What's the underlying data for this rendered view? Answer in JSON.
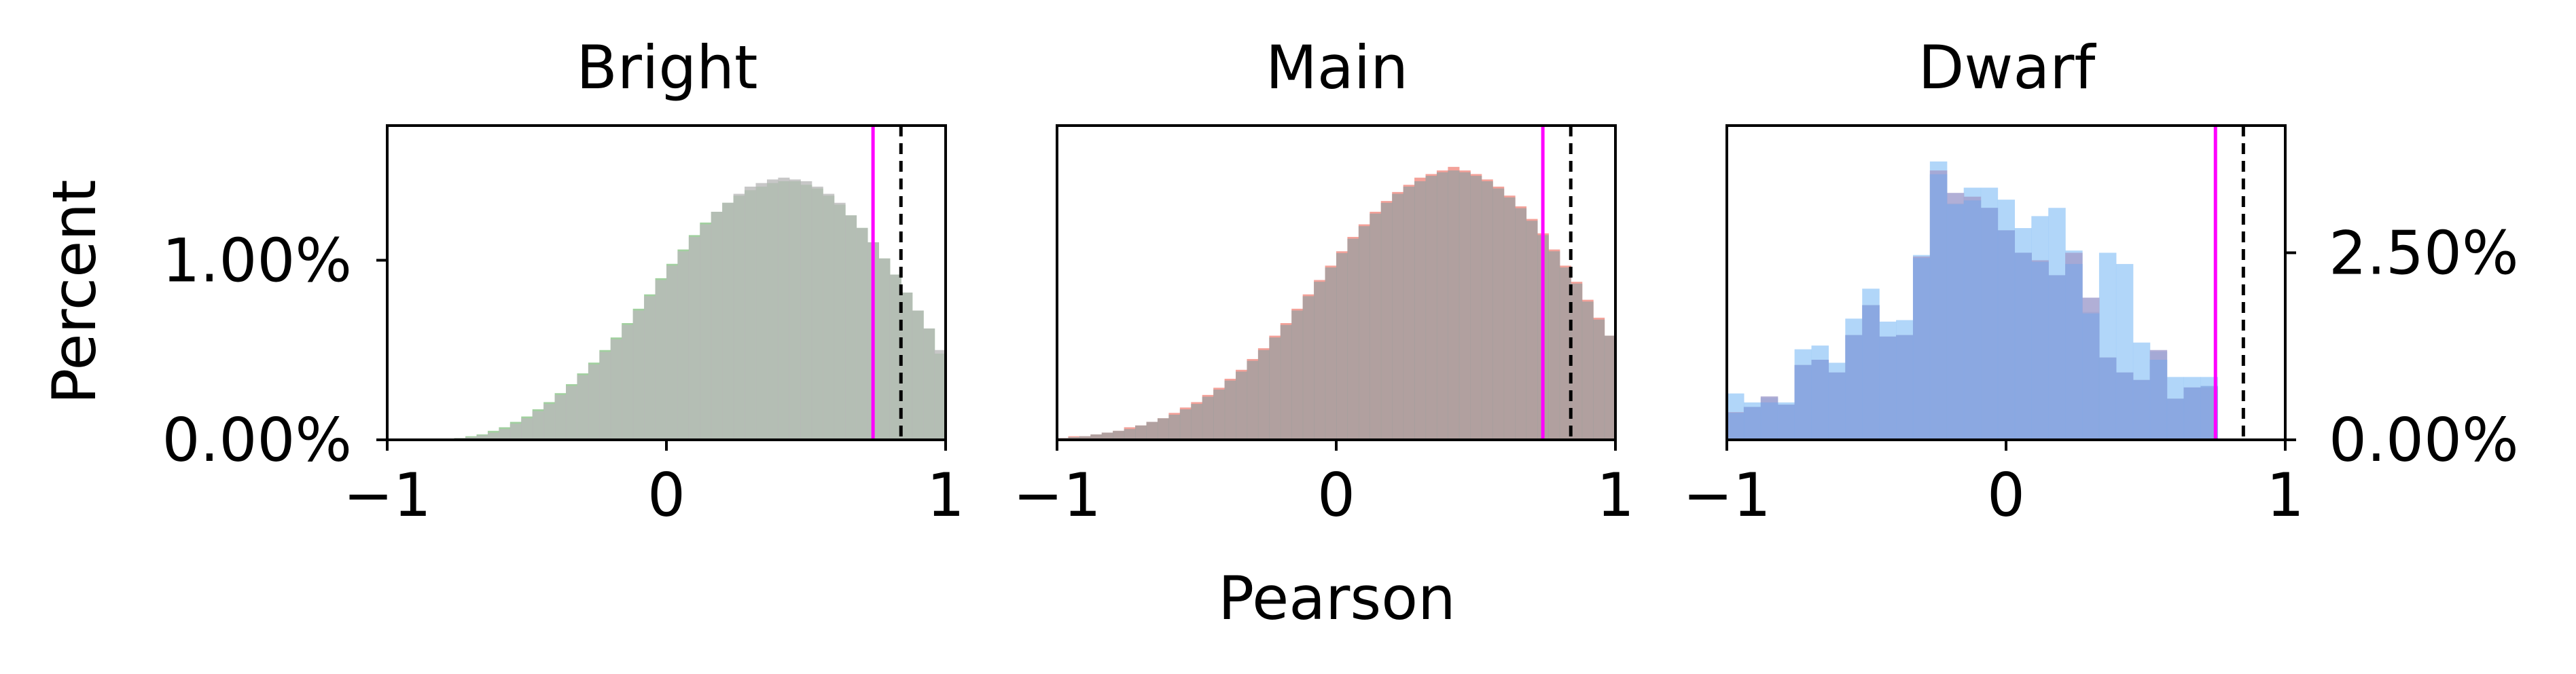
{
  "chart_data": [
    {
      "type": "bar",
      "title": "Bright",
      "xlabel": "Pearson",
      "ylabel": "Percent",
      "xlim": [
        -1,
        1
      ],
      "ylim": [
        0,
        1.75
      ],
      "x_ticks": [
        "−1",
        "0",
        "1"
      ],
      "y_ticks": [
        {
          "value": 0,
          "label": "0.00%"
        },
        {
          "value": 1,
          "label": "1.00%"
        }
      ],
      "y_axis_side": "left",
      "bin_width": 0.04,
      "series": [
        {
          "color": "#8ac487",
          "values": [
            0,
            0,
            0,
            0,
            0,
            0.005,
            0.01,
            0.02,
            0.03,
            0.05,
            0.07,
            0.1,
            0.13,
            0.17,
            0.21,
            0.26,
            0.31,
            0.37,
            0.43,
            0.5,
            0.57,
            0.65,
            0.73,
            0.81,
            0.9,
            0.98,
            1.06,
            1.14,
            1.21,
            1.27,
            1.32,
            1.36,
            1.39,
            1.41,
            1.43,
            1.44,
            1.44,
            1.42,
            1.4,
            1.36,
            1.31,
            1.25,
            1.18,
            1.1,
            1.01,
            0.92,
            0.82,
            0.72,
            0.62,
            0.48
          ]
        },
        {
          "color": "#b9b9b9",
          "values": [
            0,
            0,
            0,
            0,
            0,
            0.005,
            0.01,
            0.015,
            0.025,
            0.04,
            0.06,
            0.09,
            0.12,
            0.16,
            0.2,
            0.25,
            0.3,
            0.36,
            0.42,
            0.49,
            0.56,
            0.64,
            0.72,
            0.8,
            0.89,
            0.97,
            1.05,
            1.13,
            1.2,
            1.27,
            1.32,
            1.37,
            1.41,
            1.43,
            1.45,
            1.46,
            1.45,
            1.44,
            1.41,
            1.37,
            1.32,
            1.25,
            1.18,
            1.1,
            1.01,
            0.92,
            0.82,
            0.72,
            0.62,
            0.5
          ]
        }
      ],
      "tail_values": {
        "green": [
          0.42,
          0.43,
          0.48,
          0.55,
          0.65,
          0.9
        ],
        "grey": [
          0.47,
          0.46,
          0.47,
          0.5,
          0.55,
          0.62
        ]
      },
      "vlines": [
        {
          "x": 0.74,
          "color": "#ff00ff",
          "style": "solid"
        },
        {
          "x": 0.84,
          "color": "#000000",
          "style": "dashed"
        }
      ]
    },
    {
      "type": "bar",
      "title": "Main",
      "xlim": [
        -1,
        1
      ],
      "ylim": [
        0,
        1.75
      ],
      "x_ticks": [
        "−1",
        "0",
        "1"
      ],
      "bin_width": 0.04,
      "series": [
        {
          "color": "#f08a80",
          "values": [
            0.01,
            0.02,
            0.02,
            0.03,
            0.04,
            0.05,
            0.07,
            0.08,
            0.1,
            0.12,
            0.15,
            0.18,
            0.21,
            0.25,
            0.29,
            0.34,
            0.39,
            0.45,
            0.51,
            0.58,
            0.65,
            0.73,
            0.81,
            0.89,
            0.97,
            1.05,
            1.13,
            1.2,
            1.27,
            1.33,
            1.38,
            1.42,
            1.46,
            1.48,
            1.5,
            1.52,
            1.5,
            1.48,
            1.45,
            1.41,
            1.36,
            1.3,
            1.23,
            1.15,
            1.06,
            0.97,
            0.88,
            0.78,
            0.68,
            0.58
          ]
        },
        {
          "color": "#a0a0a0",
          "values": [
            0.01,
            0.015,
            0.02,
            0.03,
            0.04,
            0.05,
            0.06,
            0.08,
            0.1,
            0.12,
            0.14,
            0.17,
            0.2,
            0.24,
            0.28,
            0.33,
            0.38,
            0.44,
            0.5,
            0.57,
            0.64,
            0.72,
            0.8,
            0.88,
            0.96,
            1.04,
            1.12,
            1.19,
            1.26,
            1.32,
            1.37,
            1.41,
            1.44,
            1.47,
            1.49,
            1.5,
            1.49,
            1.47,
            1.44,
            1.4,
            1.35,
            1.29,
            1.22,
            1.14,
            1.05,
            0.96,
            0.87,
            0.77,
            0.67,
            0.58
          ]
        }
      ],
      "tail_values": {
        "red": [
          0.45,
          0.41,
          0.39,
          0.4,
          0.45,
          0.55
        ],
        "grey": [
          0.44,
          0.4,
          0.39,
          0.41,
          0.5,
          0.64
        ]
      },
      "vlines": [
        {
          "x": 0.74,
          "color": "#ff00ff",
          "style": "solid"
        },
        {
          "x": 0.84,
          "color": "#000000",
          "style": "dashed"
        }
      ]
    },
    {
      "type": "bar",
      "title": "Dwarf",
      "xlim": [
        -1,
        1
      ],
      "ylim": [
        0,
        4.2
      ],
      "x_ticks": [
        "−1",
        "0",
        "1"
      ],
      "y_ticks": [
        {
          "value": 0,
          "label": "0.00%"
        },
        {
          "value": 2.5,
          "label": "2.50%"
        }
      ],
      "y_axis_side": "right",
      "bin_width": 0.0606,
      "series": [
        {
          "color": "#a3cff8",
          "values": [
            0.62,
            0.5,
            0.56,
            0.5,
            1.21,
            1.26,
            1.03,
            1.62,
            2.02,
            1.58,
            1.6,
            2.47,
            3.72,
            3.16,
            3.37,
            3.37,
            3.21,
            2.83,
            2.99,
            3.1,
            2.53,
            1.71,
            2.5,
            2.35,
            1.3,
            1.18,
            0.84,
            0.84,
            0.84
          ]
        },
        {
          "color": "#a3a1cf",
          "values": [
            0.37,
            0.44,
            0.58,
            0.47,
            1.0,
            1.07,
            0.9,
            1.4,
            1.8,
            1.38,
            1.4,
            2.45,
            3.6,
            3.3,
            3.25,
            3.1,
            2.8,
            2.5,
            2.4,
            2.2,
            2.5,
            1.9,
            1.1,
            0.9,
            0.8,
            1.2,
            0.55,
            0.7,
            0.7
          ]
        },
        {
          "color": "#86a8e3",
          "values": [
            0.36,
            0.44,
            0.5,
            0.47,
            1.0,
            1.07,
            0.9,
            1.4,
            1.8,
            1.38,
            1.4,
            2.43,
            3.55,
            3.15,
            3.2,
            3.1,
            2.8,
            2.5,
            2.38,
            2.2,
            2.35,
            1.69,
            1.1,
            0.9,
            0.8,
            1.07,
            0.55,
            0.7,
            0.72
          ]
        }
      ],
      "vlines": [
        {
          "x": 0.75,
          "color": "#ff00ff",
          "style": "solid"
        },
        {
          "x": 0.85,
          "color": "#000000",
          "style": "dashed"
        }
      ]
    }
  ]
}
